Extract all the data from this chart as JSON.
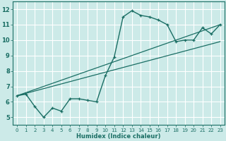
{
  "title": "",
  "xlabel": "Humidex (Indice chaleur)",
  "ylabel": "",
  "background_color": "#cceae8",
  "grid_color": "#ffffff",
  "line_color": "#1a6e64",
  "xlim": [
    -0.5,
    23.5
  ],
  "ylim": [
    4.5,
    12.5
  ],
  "xticks": [
    0,
    1,
    2,
    3,
    4,
    5,
    6,
    7,
    8,
    9,
    10,
    11,
    12,
    13,
    14,
    15,
    16,
    17,
    18,
    19,
    20,
    21,
    22,
    23
  ],
  "yticks": [
    5,
    6,
    7,
    8,
    9,
    10,
    11,
    12
  ],
  "curve1_x": [
    0,
    1,
    2,
    3,
    4,
    5,
    6,
    7,
    8,
    9,
    10,
    11,
    12,
    13,
    14,
    15,
    16,
    17,
    18,
    19,
    20,
    21,
    22,
    23
  ],
  "curve1_y": [
    6.4,
    6.5,
    5.7,
    5.0,
    5.6,
    5.4,
    6.2,
    6.2,
    6.1,
    6.0,
    7.7,
    8.9,
    11.5,
    11.9,
    11.6,
    11.5,
    11.3,
    11.0,
    9.9,
    10.0,
    10.0,
    10.8,
    10.4,
    11.0
  ],
  "line1_x": [
    0,
    23
  ],
  "line1_y": [
    6.4,
    9.9
  ],
  "line2_x": [
    0,
    23
  ],
  "line2_y": [
    6.4,
    11.0
  ]
}
